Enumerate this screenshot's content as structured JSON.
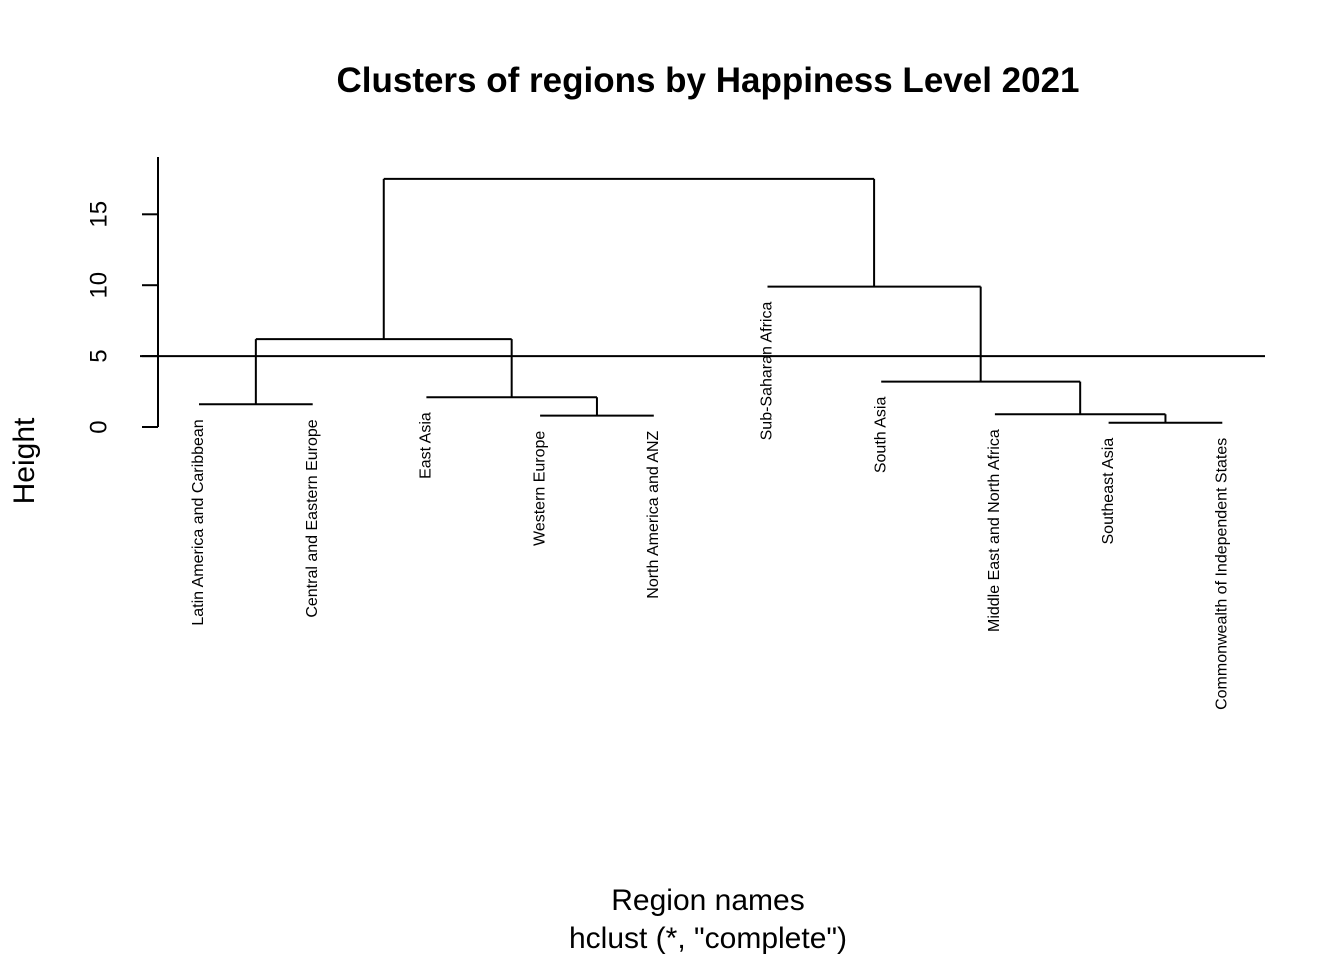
{
  "chart_data": {
    "type": "dendrogram",
    "title": "Clusters of regions by Happiness Level 2021",
    "xlabel": "Region names",
    "sub": "hclust (*, \"complete\")",
    "ylabel": "Height",
    "yticks": [
      "0",
      "5",
      "10",
      "15"
    ],
    "ylim": [
      0,
      19
    ],
    "leaves": [
      {
        "label": "Latin America and Caribbean",
        "height": 1.6
      },
      {
        "label": "Central and Eastern Europe",
        "height": 1.6
      },
      {
        "label": "East Asia",
        "height": 2.1
      },
      {
        "label": "Western Europe",
        "height": 0.8
      },
      {
        "label": "North America and ANZ",
        "height": 0.8
      },
      {
        "label": "Sub-Saharan Africa",
        "height": 9.9
      },
      {
        "label": "South Asia",
        "height": 3.2
      },
      {
        "label": "Middle East and North Africa",
        "height": 0.9
      },
      {
        "label": "Southeast Asia",
        "height": 0.3
      },
      {
        "label": "Commonwealth of Independent States",
        "height": 0.3
      }
    ],
    "merges": [
      {
        "left": 8,
        "right": 9,
        "height": 0.3
      },
      {
        "left": 3,
        "right": 4,
        "height": 0.8
      },
      {
        "left": 7,
        "right": "c0",
        "height": 0.9
      },
      {
        "left": 0,
        "right": 1,
        "height": 1.6
      },
      {
        "left": 2,
        "right": "c1",
        "height": 2.1
      },
      {
        "left": 6,
        "right": "c2",
        "height": 3.2
      },
      {
        "left": "c3",
        "right": "c4",
        "height": 6.2
      },
      {
        "left": 5,
        "right": "c5",
        "height": 9.9
      },
      {
        "left": "c6",
        "right": "c7",
        "height": 17.5
      }
    ],
    "cut_height": 5,
    "grid": false
  }
}
